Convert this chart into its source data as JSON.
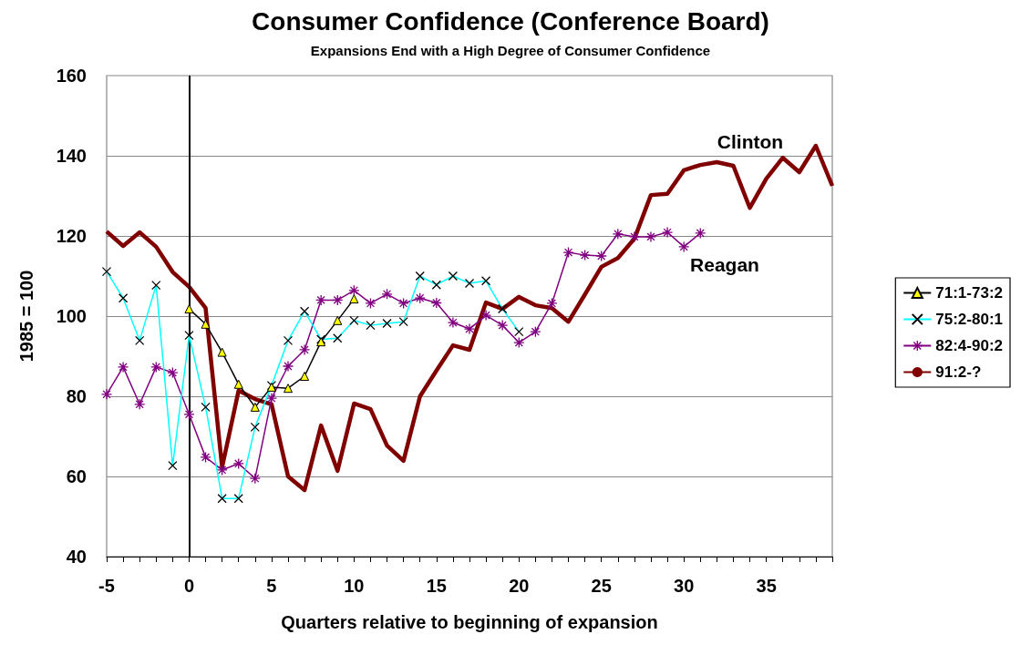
{
  "chart_data": {
    "type": "line",
    "title": "Consumer Confidence (Conference Board)",
    "subtitle": "Expansions End with a High Degree of Consumer Confidence",
    "xlabel": "Quarters relative to beginning of expansion",
    "ylabel": "1985 = 100",
    "xlim": [
      -5,
      39
    ],
    "xticks": [
      -5,
      0,
      5,
      10,
      15,
      20,
      25,
      30,
      35
    ],
    "ylim": [
      40,
      160
    ],
    "yticks": [
      40,
      60,
      80,
      100,
      120,
      140,
      160
    ],
    "grid": "y",
    "legend": "right",
    "series": [
      {
        "name": "71:1-73:2",
        "color": "#000000",
        "marker": "triangle",
        "x": [
          0,
          1,
          2,
          3,
          4,
          5,
          6,
          7,
          8,
          9,
          10
        ],
        "values": [
          101.8,
          98,
          91,
          83,
          77.3,
          82.3,
          82,
          85,
          93.6,
          98.9,
          104.3
        ]
      },
      {
        "name": "75:2-80:1",
        "color": "#00ffff",
        "marker": "cross",
        "x": [
          -5,
          -4,
          -3,
          -2,
          -1,
          0,
          1,
          2,
          3,
          4,
          5,
          6,
          7,
          8,
          9,
          10,
          11,
          12,
          13,
          14,
          15,
          16,
          17,
          18,
          19,
          20
        ],
        "values": [
          111.1,
          104.5,
          93.9,
          107.7,
          62.7,
          95.2,
          77.3,
          54.5,
          54.5,
          72.3,
          82.7,
          93.9,
          101.2,
          94.2,
          94.5,
          98.9,
          97.7,
          98.2,
          98.6,
          110,
          107.8,
          110,
          108.2,
          108.8,
          101.8,
          96.1
        ]
      },
      {
        "name": "82:4-90:2",
        "color": "#800080",
        "marker": "star",
        "x": [
          -5,
          -4,
          -3,
          -2,
          -1,
          0,
          1,
          2,
          3,
          4,
          5,
          6,
          7,
          8,
          9,
          10,
          11,
          12,
          13,
          14,
          15,
          16,
          17,
          18,
          19,
          20,
          21,
          22,
          23,
          24,
          25,
          26,
          27,
          28,
          29,
          30,
          31
        ],
        "values": [
          80.5,
          87.3,
          78,
          87.3,
          85.9,
          75.5,
          64.8,
          61.6,
          63.2,
          59.5,
          79.5,
          87.5,
          91.6,
          104,
          104,
          106.4,
          103.2,
          105.5,
          103.2,
          104.5,
          103.3,
          98.4,
          96.8,
          100.2,
          97.7,
          93.4,
          96.1,
          103.2,
          115.9,
          115.2,
          115,
          120.5,
          119.8,
          119.8,
          120.9,
          117.3,
          120.7
        ]
      },
      {
        "name": "91:2-?",
        "color": "#800000",
        "marker": "none",
        "x": [
          -5,
          -4,
          -3,
          -2,
          -1,
          0,
          1,
          2,
          3,
          4,
          5,
          6,
          7,
          8,
          9,
          10,
          11,
          12,
          13,
          14,
          15,
          16,
          17,
          18,
          19,
          20,
          21,
          22,
          23,
          24,
          25,
          26,
          27,
          28,
          29,
          30,
          31,
          32,
          33,
          34,
          35,
          36,
          37,
          38,
          39
        ],
        "values": [
          121.1,
          117.5,
          120.9,
          117.3,
          111,
          107.3,
          102,
          62.3,
          81.4,
          79.3,
          78,
          60,
          56.6,
          72.7,
          61.4,
          78.2,
          76.8,
          67.7,
          63.9,
          80,
          86.4,
          92.7,
          91.6,
          103.4,
          101.8,
          104.8,
          102.7,
          102,
          98.6,
          105.4,
          112.3,
          114.5,
          119.3,
          130.2,
          130.5,
          136.4,
          137.7,
          138.4,
          137.5,
          127,
          134.3,
          139.5,
          135.9,
          142.5,
          132.5
        ]
      }
    ],
    "ref_lines": [
      {
        "axis": "x",
        "value": 0,
        "color": "#000000"
      }
    ],
    "annotations": [
      "Clinton",
      "Reagan"
    ]
  }
}
